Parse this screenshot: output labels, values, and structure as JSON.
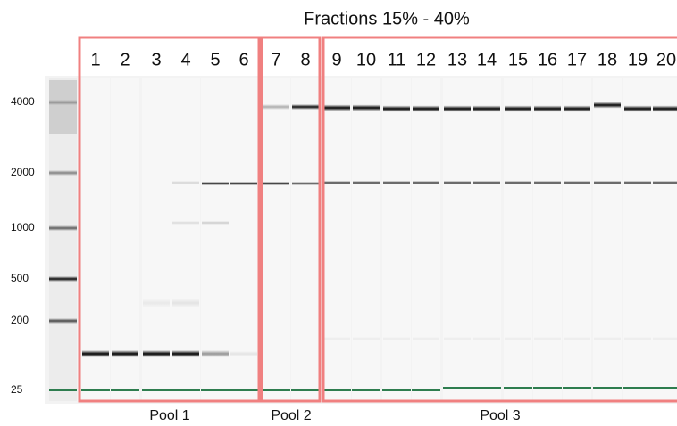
{
  "title": "Fractions 15% - 40%",
  "lanes": [
    "1",
    "2",
    "3",
    "4",
    "5",
    "6",
    "7",
    "8",
    "9",
    "10",
    "11",
    "12",
    "13",
    "14",
    "15",
    "16",
    "17",
    "18",
    "19",
    "20"
  ],
  "size_markers": [
    "4000",
    "2000",
    "1000",
    "500",
    "200",
    "25"
  ],
  "pools": [
    "Pool 1",
    "Pool 2",
    "Pool 3"
  ]
}
